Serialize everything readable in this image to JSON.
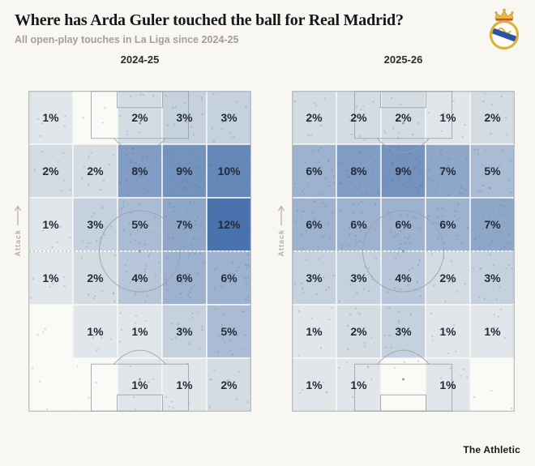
{
  "header": {
    "title": "Where has Arda Guler touched the ball for Real Madrid?",
    "subtitle": "All open-play touches in La Liga since 2024-25"
  },
  "labels": {
    "attack": "Attack"
  },
  "footer": {
    "brand": "The Athletic"
  },
  "chart_data": {
    "type": "heatmap",
    "title": "Where has Arda Guler touched the ball for Real Madrid?",
    "subtitle": "All open-play touches in La Liga since 2024-25",
    "unit": "%",
    "grid": {
      "cols": 5,
      "rows": 6
    },
    "orientation": "vertical-pitch",
    "attack_direction": "up",
    "scale": {
      "min": 0,
      "max": 12,
      "low_color": "#eef0ee",
      "high_color": "#4a73ae",
      "empty_color": "#fafaf6"
    },
    "background_color": "#f9f7f2",
    "pitch_line_color": "#9aa0a8",
    "value_text_color": "#232b39",
    "pitches": [
      {
        "label": "2024-25",
        "values": [
          [
            1,
            null,
            2,
            3,
            3
          ],
          [
            2,
            2,
            8,
            9,
            10
          ],
          [
            1,
            3,
            5,
            7,
            12
          ],
          [
            1,
            2,
            4,
            6,
            6
          ],
          [
            null,
            1,
            1,
            3,
            5
          ],
          [
            null,
            null,
            1,
            1,
            2
          ]
        ]
      },
      {
        "label": "2025-26",
        "values": [
          [
            2,
            2,
            2,
            1,
            2
          ],
          [
            6,
            8,
            9,
            7,
            5
          ],
          [
            6,
            6,
            6,
            6,
            7
          ],
          [
            3,
            3,
            4,
            2,
            3
          ],
          [
            1,
            2,
            3,
            1,
            1
          ],
          [
            1,
            1,
            null,
            1,
            null
          ]
        ]
      }
    ]
  }
}
